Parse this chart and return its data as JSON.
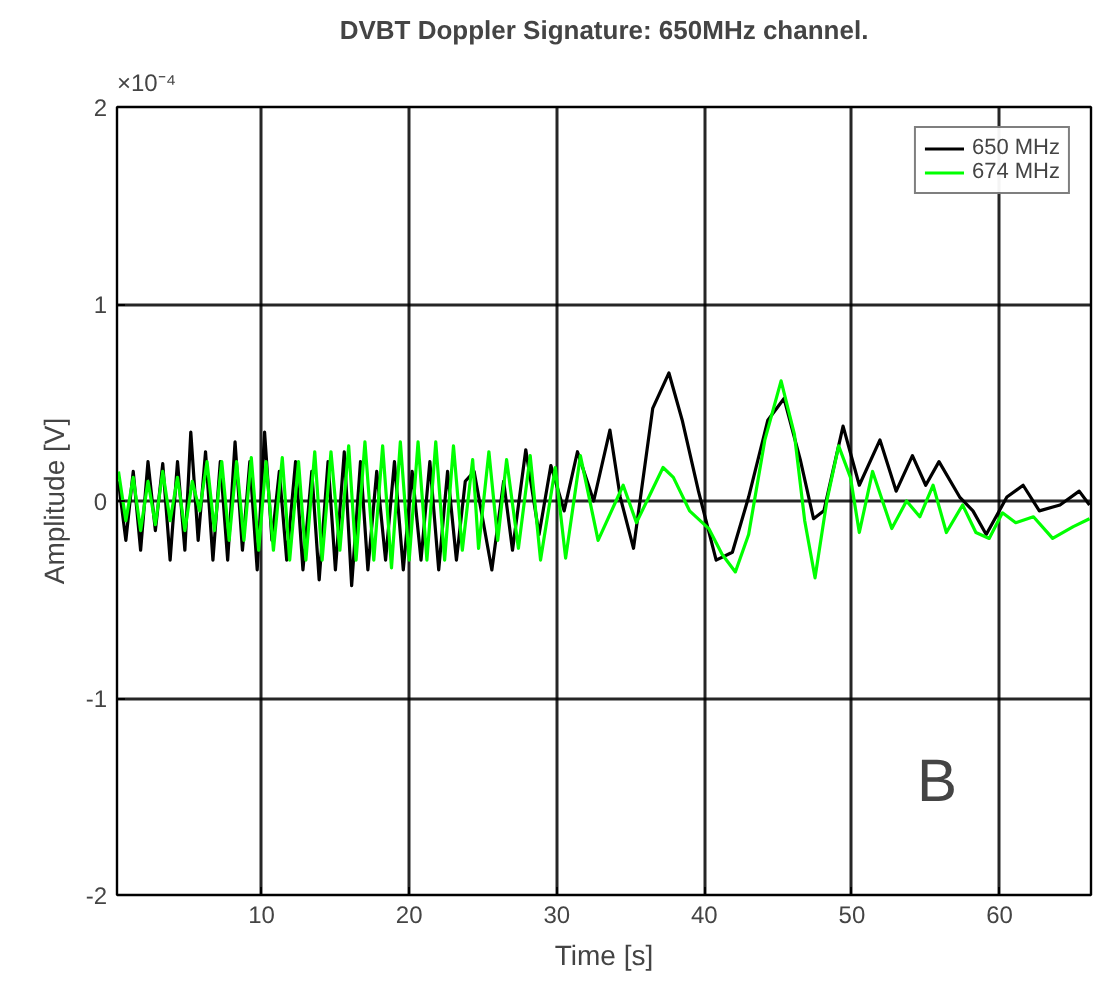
{
  "chart_data": {
    "type": "line",
    "title": "DVBT Doppler Signature: 650MHz channel.",
    "xlabel": "Time [s]",
    "ylabel": "Amplitude [V]",
    "annotations": [
      "×10⁻⁴",
      "B"
    ],
    "xlim": [
      0.2,
      66.2
    ],
    "xticks": [
      10,
      20,
      30,
      40,
      50,
      60
    ],
    "ylim": [
      -2,
      2
    ],
    "yticks": [
      -2,
      -1,
      0,
      1,
      2
    ],
    "grid": true,
    "legend": "top right",
    "line_style": "solid",
    "series": [
      {
        "name": "650 MHz",
        "color": "#000000",
        "x": [
          0.3,
          0.8,
          1.3,
          1.8,
          2.3,
          2.8,
          3.3,
          3.8,
          4.3,
          4.8,
          5.2,
          5.7,
          6.2,
          6.7,
          7.2,
          7.7,
          8.2,
          8.7,
          9.2,
          9.7,
          10.2,
          10.7,
          11.2,
          11.7,
          12.3,
          12.8,
          13.4,
          13.9,
          14.5,
          15.0,
          15.6,
          16.1,
          16.7,
          17.2,
          17.8,
          18.4,
          19.0,
          19.6,
          20.2,
          20.8,
          21.4,
          22.0,
          22.6,
          23.2,
          23.8,
          24.4,
          25.6,
          26.4,
          27.0,
          27.9,
          28.8,
          29.6,
          30.5,
          31.4,
          32.5,
          33.6,
          34.3,
          35.2,
          36.5,
          37.6,
          38.5,
          39.6,
          40.8,
          41.9,
          43.0,
          44.3,
          45.4,
          46.5,
          47.4,
          48.1,
          49.4,
          50.5,
          51.9,
          53.0,
          54.1,
          55.0,
          55.9,
          57.3,
          58.2,
          59.1,
          60.5,
          61.6,
          62.7,
          64.1,
          65.4,
          66.1
        ],
        "values": [
          0.1,
          -0.2,
          0.15,
          -0.25,
          0.2,
          -0.15,
          0.19,
          -0.3,
          0.2,
          -0.25,
          0.35,
          -0.2,
          0.25,
          -0.3,
          0.2,
          -0.3,
          0.3,
          -0.25,
          0.2,
          -0.35,
          0.35,
          -0.2,
          0.15,
          -0.3,
          0.2,
          -0.35,
          0.15,
          -0.4,
          0.2,
          -0.35,
          0.25,
          -0.43,
          0.2,
          -0.35,
          0.15,
          -0.3,
          0.2,
          -0.35,
          0.15,
          -0.3,
          0.2,
          -0.35,
          0.15,
          -0.3,
          0.1,
          0.15,
          -0.35,
          0.1,
          -0.25,
          0.26,
          -0.17,
          0.18,
          -0.05,
          0.25,
          0,
          0.36,
          0.02,
          -0.24,
          0.47,
          0.65,
          0.41,
          0.05,
          -0.3,
          -0.26,
          0.02,
          0.41,
          0.52,
          0.21,
          -0.09,
          -0.05,
          0.38,
          0.08,
          0.31,
          0.05,
          0.23,
          0.08,
          0.2,
          0.02,
          -0.05,
          -0.17,
          0.02,
          0.08,
          -0.05,
          -0.02,
          0.05,
          -0.02
        ]
      },
      {
        "name": "674 MHz",
        "color": "#00ff00",
        "x": [
          0.3,
          0.8,
          1.3,
          1.8,
          2.3,
          2.8,
          3.3,
          3.8,
          4.3,
          4.8,
          5.3,
          5.8,
          6.3,
          6.8,
          7.3,
          7.8,
          8.3,
          8.8,
          9.3,
          9.8,
          10.3,
          10.8,
          11.4,
          11.9,
          12.5,
          13.0,
          13.6,
          14.1,
          14.7,
          15.3,
          15.9,
          16.4,
          17.0,
          17.6,
          18.2,
          18.8,
          19.4,
          20.0,
          20.6,
          21.2,
          21.8,
          22.4,
          23.0,
          23.6,
          24.3,
          24.7,
          25.4,
          26.0,
          26.6,
          27.4,
          28.2,
          28.9,
          29.9,
          30.6,
          31.6,
          32.8,
          34.5,
          35.4,
          37.2,
          37.9,
          39.0,
          40.3,
          41.2,
          42.1,
          43.0,
          44.1,
          45.2,
          46.1,
          46.8,
          47.5,
          48.3,
          49.1,
          49.9,
          50.5,
          51.4,
          52.7,
          53.7,
          54.6,
          55.5,
          56.4,
          57.5,
          58.4,
          59.3,
          60.2,
          61.1,
          62.3,
          63.6,
          65.0,
          66.1
        ],
        "values": [
          0.15,
          -0.1,
          0.12,
          -0.15,
          0.1,
          -0.12,
          0.15,
          -0.1,
          0.12,
          -0.15,
          0.1,
          -0.05,
          0.2,
          -0.15,
          0.2,
          -0.2,
          0.2,
          -0.2,
          0.22,
          -0.25,
          0.2,
          -0.25,
          0.22,
          -0.3,
          0.2,
          -0.3,
          0.25,
          -0.3,
          0.25,
          -0.25,
          0.28,
          -0.3,
          0.3,
          -0.3,
          0.28,
          -0.34,
          0.3,
          -0.3,
          0.3,
          -0.3,
          0.3,
          -0.3,
          0.28,
          -0.25,
          0.21,
          -0.24,
          0.25,
          -0.2,
          0.21,
          -0.24,
          0.23,
          -0.3,
          0.17,
          -0.29,
          0.23,
          -0.2,
          0.08,
          -0.11,
          0.17,
          0.12,
          -0.05,
          -0.14,
          -0.27,
          -0.36,
          -0.17,
          0.31,
          0.61,
          0.34,
          -0.1,
          -0.39,
          0,
          0.28,
          0.12,
          -0.16,
          0.15,
          -0.14,
          0,
          -0.08,
          0.08,
          -0.16,
          -0.02,
          -0.16,
          -0.19,
          -0.06,
          -0.11,
          -0.08,
          -0.19,
          -0.13,
          -0.09
        ]
      }
    ]
  }
}
